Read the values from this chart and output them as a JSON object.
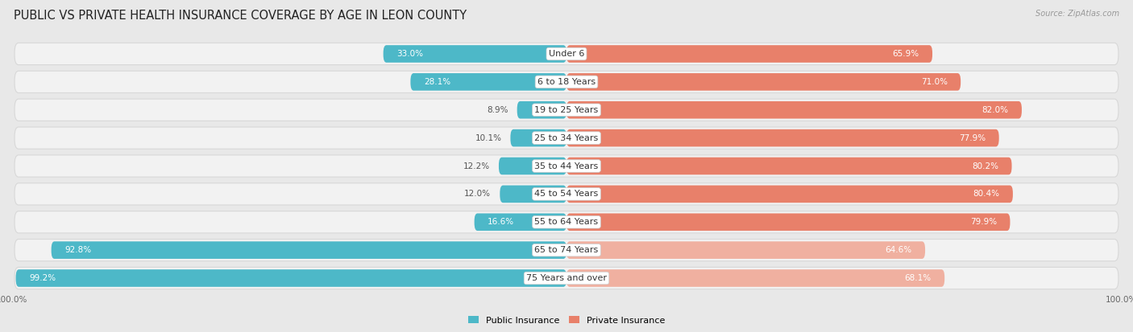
{
  "title": "PUBLIC VS PRIVATE HEALTH INSURANCE COVERAGE BY AGE IN LEON COUNTY",
  "source": "Source: ZipAtlas.com",
  "categories": [
    "Under 6",
    "6 to 18 Years",
    "19 to 25 Years",
    "25 to 34 Years",
    "35 to 44 Years",
    "45 to 54 Years",
    "55 to 64 Years",
    "65 to 74 Years",
    "75 Years and over"
  ],
  "public_values": [
    33.0,
    28.1,
    8.9,
    10.1,
    12.2,
    12.0,
    16.6,
    92.8,
    99.2
  ],
  "private_values": [
    65.9,
    71.0,
    82.0,
    77.9,
    80.2,
    80.4,
    79.9,
    64.6,
    68.1
  ],
  "public_color": "#4db8c8",
  "private_color_normal": "#e8806a",
  "private_color_light": "#f0b0a0",
  "bg_color": "#e8e8e8",
  "row_bg_color": "#f2f2f2",
  "row_border_color": "#d8d8d8",
  "text_dark": "#333333",
  "text_label_color": "#555555",
  "max_value": 100.0,
  "title_fontsize": 10.5,
  "label_fontsize": 8,
  "value_fontsize": 7.5,
  "legend_fontsize": 8,
  "axis_label_fontsize": 7.5,
  "light_private_indices": [
    7,
    8
  ]
}
